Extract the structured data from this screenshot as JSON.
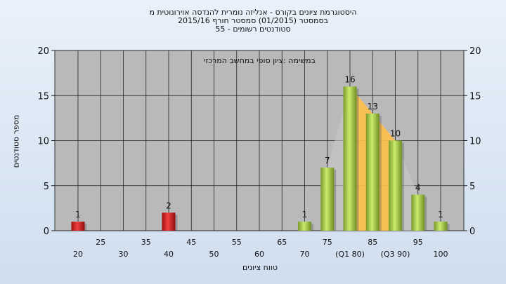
{
  "chart_data": {
    "type": "bar",
    "title_lines": [
      "היסטוגרמת ציונים בקורס - אנליזה נומרית להנדסה אוירונוטית מ",
      "בסמסטר  (01/2015)  סמסטר חורף 2015/16",
      "סטודנטים רשומים - 55"
    ],
    "annotation": "במשימה :ציון סופי במחשב המרכזי",
    "ylabel": "מספר סטודנטים",
    "xlabel": "טווח ציונים",
    "ylim": [
      0,
      20
    ],
    "yticks": [
      0,
      5,
      10,
      15,
      20
    ],
    "grid": true,
    "bars": [
      {
        "x": 20,
        "value": 1,
        "color": "red"
      },
      {
        "x": 40,
        "value": 2,
        "color": "red"
      },
      {
        "x": 70,
        "value": 1,
        "color": "green"
      },
      {
        "x": 75,
        "value": 7,
        "color": "green"
      },
      {
        "x": 80,
        "value": 16,
        "color": "green"
      },
      {
        "x": 85,
        "value": 13,
        "color": "green"
      },
      {
        "x": 90,
        "value": 10,
        "color": "green"
      },
      {
        "x": 95,
        "value": 4,
        "color": "green"
      },
      {
        "x": 100,
        "value": 1,
        "color": "green"
      }
    ],
    "x_labels_row1": [
      "25",
      "35",
      "45",
      "55",
      "65",
      "75",
      "85",
      "95"
    ],
    "x_labels_row2": [
      "20",
      "30",
      "40",
      "50",
      "60",
      "70",
      "(Q1 80)",
      "(Q3 90)",
      "100"
    ],
    "quartiles": {
      "Q1": 80,
      "Q3": 90
    }
  }
}
